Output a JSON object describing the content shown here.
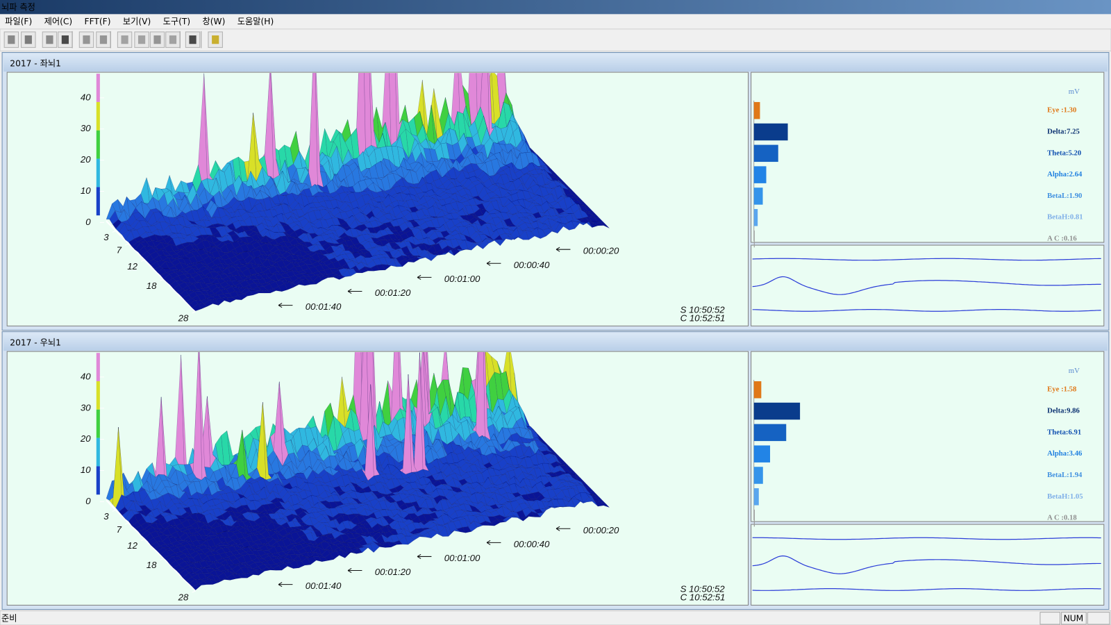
{
  "window": {
    "title": "뇌파 측정"
  },
  "menu": [
    "파일(F)",
    "제어(C)",
    "FFT(F)",
    "보기(V)",
    "도구(T)",
    "창(W)",
    "도움말(H)"
  ],
  "panels": [
    {
      "title": "2017 - 좌뇌1",
      "spectrogram": {
        "zticks": [
          0,
          10,
          20,
          30,
          40
        ],
        "freq_ticks": [
          3,
          7,
          12,
          18,
          28
        ],
        "time_labels": [
          "00:00:20",
          "00:00:40",
          "00:01:00",
          "00:01:20",
          "00:01:40"
        ],
        "start": "S 10:50:52",
        "current": "C 10:52:51"
      },
      "bands": {
        "unit": "mV",
        "items": [
          {
            "label": "Eye :1.30",
            "value": 1.3
          },
          {
            "label": "Delta:7.25",
            "value": 7.25
          },
          {
            "label": "Theta:5.20",
            "value": 5.2
          },
          {
            "label": "Alpha:2.64",
            "value": 2.64
          },
          {
            "label": "BetaL:1.90",
            "value": 1.9
          },
          {
            "label": "BetaH:0.81",
            "value": 0.81
          },
          {
            "label": "A C :0.16",
            "value": 0.16
          }
        ]
      }
    },
    {
      "title": "2017 - 우뇌1",
      "spectrogram": {
        "zticks": [
          0,
          10,
          20,
          30,
          40
        ],
        "freq_ticks": [
          3,
          7,
          12,
          18,
          28
        ],
        "time_labels": [
          "00:00:20",
          "00:00:40",
          "00:01:00",
          "00:01:20",
          "00:01:40"
        ],
        "start": "S 10:50:52",
        "current": "C 10:52:51"
      },
      "bands": {
        "unit": "mV",
        "items": [
          {
            "label": "Eye :1.58",
            "value": 1.58
          },
          {
            "label": "Delta:9.86",
            "value": 9.86
          },
          {
            "label": "Theta:6.91",
            "value": 6.91
          },
          {
            "label": "Alpha:3.46",
            "value": 3.46
          },
          {
            "label": "BetaL:1.94",
            "value": 1.94
          },
          {
            "label": "BetaH:1.05",
            "value": 1.05
          },
          {
            "label": "A C :0.18",
            "value": 0.18
          }
        ]
      }
    }
  ],
  "status": {
    "text": "준비",
    "indicator": "NUM"
  }
}
